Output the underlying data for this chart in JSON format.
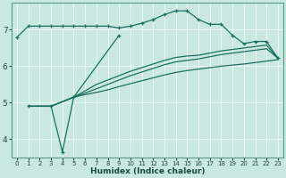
{
  "xlabel": "Humidex (Indice chaleur)",
  "bg_color": "#c8e8e0",
  "grid_color": "#e8f8f4",
  "line_color": "#1a7060",
  "xlim": [
    -0.5,
    23.5
  ],
  "ylim": [
    3.5,
    7.75
  ],
  "xtick_vals": [
    0,
    1,
    2,
    3,
    4,
    5,
    6,
    7,
    8,
    9,
    10,
    11,
    12,
    13,
    14,
    15,
    16,
    17,
    18,
    19,
    20,
    21,
    22,
    23
  ],
  "ytick_vals": [
    4,
    5,
    6,
    7
  ],
  "series": [
    {
      "x": [
        0,
        1,
        2,
        3,
        4,
        5,
        6,
        7,
        8,
        9,
        10,
        11,
        12,
        13,
        14,
        15,
        16,
        17,
        18,
        19,
        20,
        21,
        22,
        23
      ],
      "y": [
        6.8,
        7.1,
        7.1,
        7.1,
        7.1,
        7.1,
        7.1,
        7.1,
        7.1,
        7.05,
        7.1,
        7.18,
        7.28,
        7.42,
        7.52,
        7.52,
        7.28,
        7.15,
        7.15,
        6.85,
        6.62,
        6.68,
        6.68,
        6.22
      ],
      "marker": true
    },
    {
      "x": [
        1,
        3,
        4,
        5,
        9
      ],
      "y": [
        4.9,
        4.9,
        3.65,
        5.15,
        6.85
      ],
      "marker": true
    },
    {
      "x": [
        1,
        3,
        5,
        6,
        7,
        8,
        9,
        10,
        11,
        12,
        13,
        14,
        15,
        16,
        17,
        18,
        19,
        20,
        21,
        22,
        23
      ],
      "y": [
        4.9,
        4.9,
        5.15,
        5.22,
        5.28,
        5.35,
        5.44,
        5.52,
        5.6,
        5.68,
        5.76,
        5.83,
        5.88,
        5.92,
        5.96,
        6.0,
        6.03,
        6.06,
        6.1,
        6.14,
        6.18
      ],
      "marker": false
    },
    {
      "x": [
        1,
        3,
        5,
        6,
        7,
        8,
        9,
        10,
        11,
        12,
        13,
        14,
        15,
        16,
        17,
        18,
        19,
        20,
        21,
        22,
        23
      ],
      "y": [
        4.9,
        4.9,
        5.15,
        5.26,
        5.38,
        5.5,
        5.62,
        5.74,
        5.84,
        5.94,
        6.04,
        6.12,
        6.16,
        6.2,
        6.26,
        6.32,
        6.36,
        6.4,
        6.44,
        6.48,
        6.22
      ],
      "marker": false
    },
    {
      "x": [
        1,
        3,
        5,
        6,
        7,
        8,
        9,
        10,
        11,
        12,
        13,
        14,
        15,
        16,
        17,
        18,
        19,
        20,
        21,
        22,
        23
      ],
      "y": [
        4.9,
        4.9,
        5.15,
        5.32,
        5.5,
        5.62,
        5.74,
        5.86,
        5.96,
        6.06,
        6.16,
        6.24,
        6.28,
        6.3,
        6.36,
        6.42,
        6.46,
        6.5,
        6.54,
        6.58,
        6.22
      ],
      "marker": false
    }
  ]
}
